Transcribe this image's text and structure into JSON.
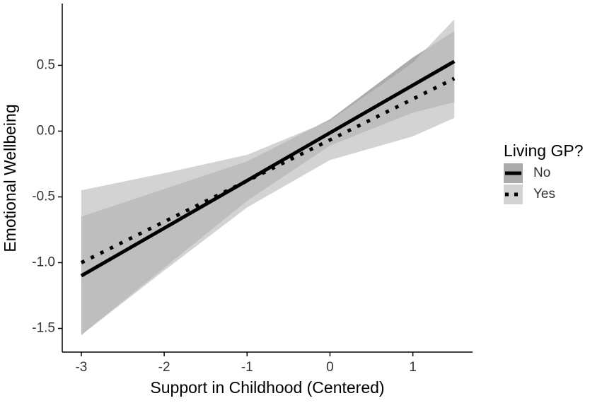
{
  "chart_data": {
    "type": "line",
    "x_label": "Support in Childhood (Centered)",
    "y_label": "Emotional Wellbeing",
    "legend_title": "Living GP?",
    "x": [
      -3,
      -2,
      -1,
      0,
      1,
      1.5
    ],
    "series": [
      {
        "name": "No",
        "color": "#000000",
        "linestyle": "solid",
        "band_color": "#8f8f8f",
        "values": [
          -1.1,
          -0.738,
          -0.376,
          -0.013,
          0.349,
          0.53
        ],
        "lower": [
          -1.55,
          -1.04,
          -0.53,
          -0.11,
          0.14,
          0.22
        ],
        "upper": [
          -0.65,
          -0.44,
          -0.23,
          0.09,
          0.56,
          0.76
        ]
      },
      {
        "name": "Yes",
        "color": "#000000",
        "linestyle": "dotted",
        "band_color": "#c4c4c4",
        "values": [
          -1.0,
          -0.689,
          -0.378,
          -0.067,
          0.244,
          0.4
        ],
        "lower": [
          -1.55,
          -1.06,
          -0.58,
          -0.22,
          -0.04,
          0.1
        ],
        "upper": [
          -0.45,
          -0.32,
          -0.18,
          0.08,
          0.52,
          0.85
        ]
      }
    ],
    "xlim": [
      -3.23,
      1.72
    ],
    "xticks": [
      -3,
      -2,
      -1,
      0,
      1
    ],
    "ylim": [
      -1.68,
      0.97
    ],
    "yticks": [
      -1.5,
      -1.0,
      -0.5,
      0.0,
      0.5
    ],
    "grid": false
  }
}
